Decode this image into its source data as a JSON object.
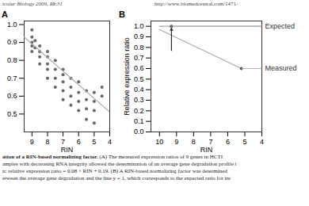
{
  "header": [
    "icular Biology 2009, ",
    "10",
    ":31",
    "http://www.biomedcentral.com/1471-"
  ],
  "caption": [
    [
      "ation of a RIN-based normalizing factor.",
      " (A) The measured expression ratios of 9 genes in HCTI "
    ],
    [
      "amples with decreasing RNA integrity allowed the determination of an average gene degradation profile t"
    ],
    [
      "n: relative expression ratio = 0.08 × RIN + 0.19. (B) A RIN-based normalizing factor was determined"
    ],
    [
      "etween the average gene degradation and the line y = 1, which corresponds to the expected ratio for int"
    ]
  ],
  "chart_data": [
    {
      "type": "scatter",
      "title": "A",
      "xlabel": "RIN",
      "xlim": [
        9.5,
        4.0
      ],
      "ylim": [
        0.4,
        1.02
      ],
      "xticks": [
        9,
        8,
        7,
        6,
        5,
        4
      ],
      "yticks": [
        {
          "value": 1.0,
          "label": "1.0"
        },
        0.9,
        0.8,
        0.7,
        0.6,
        0.5
      ],
      "series": [
        {
          "type": "scatter",
          "marker": "circle",
          "color": "#666666",
          "x": [
            9.0,
            9.0,
            9.0,
            9.0,
            9.0,
            8.8,
            8.8,
            8.5,
            8.5,
            8.5,
            8.5,
            8.0,
            8.0,
            8.0,
            8.0,
            8.0,
            7.5,
            7.5,
            7.5,
            7.5,
            7.0,
            7.0,
            7.0,
            7.0,
            7.0,
            6.5,
            6.5,
            6.5,
            6.5,
            6.0,
            6.0,
            6.0,
            6.0,
            5.5,
            5.5,
            5.5,
            5.5,
            5.0,
            5.0,
            5.0,
            5.0,
            4.5,
            4.5
          ],
          "values": [
            0.97,
            0.93,
            0.9,
            0.88,
            0.85,
            0.91,
            0.87,
            0.88,
            0.85,
            0.82,
            0.78,
            0.85,
            0.82,
            0.78,
            0.75,
            0.7,
            0.8,
            0.75,
            0.7,
            0.65,
            0.75,
            0.72,
            0.68,
            0.63,
            0.58,
            0.7,
            0.65,
            0.6,
            0.55,
            0.68,
            0.62,
            0.57,
            0.52,
            0.63,
            0.58,
            0.53,
            0.47,
            0.62,
            0.57,
            0.52,
            0.45,
            0.65,
            0.6
          ]
        },
        {
          "type": "line",
          "color": "#aaaaaa",
          "x": [
            4.0,
            9.5
          ],
          "values": [
            0.511,
            0.93
          ]
        }
      ]
    },
    {
      "type": "line",
      "title": "B",
      "xlabel": "RIN",
      "ylabel": "Relative expression ratio",
      "xlim": [
        10.5,
        4.0
      ],
      "ylim": [
        0.0,
        1.05
      ],
      "xticks": [
        10,
        9,
        8,
        7,
        6,
        5,
        4
      ],
      "yticks": [
        {
          "value": 0.0,
          "label": "0.0"
        },
        0.1,
        0.2,
        0.3,
        0.4,
        0.5,
        0.6,
        0.7,
        0.8,
        0.9,
        {
          "value": 1.0,
          "label": "1.0"
        }
      ],
      "series": [
        {
          "type": "line",
          "color": "#aaaaaa",
          "x": [
            4.0,
            10.0
          ],
          "values": [
            1.0,
            1.0
          ]
        },
        {
          "type": "line",
          "color": "#aaaaaa",
          "x": [
            5.2,
            10.0
          ],
          "values": [
            0.6,
            0.97
          ]
        },
        {
          "type": "scatter",
          "marker": "circle",
          "color": "#555555",
          "x": [
            9.3
          ],
          "values": [
            1.0
          ]
        },
        {
          "type": "scatter",
          "marker": "circle",
          "color": "#555555",
          "x": [
            5.2
          ],
          "values": [
            0.6
          ]
        }
      ],
      "annotations": [
        {
          "text": "Expected",
          "x": 9.3,
          "y": 1.0,
          "color": "#aaaaaa"
        },
        {
          "text": "Measured",
          "x": 5.2,
          "y": 0.6,
          "color": "#aaaaaa"
        }
      ],
      "arrows": [
        {
          "x": 9.3,
          "y_from": 0.77,
          "y_to": 0.98,
          "color": "black"
        }
      ]
    }
  ]
}
